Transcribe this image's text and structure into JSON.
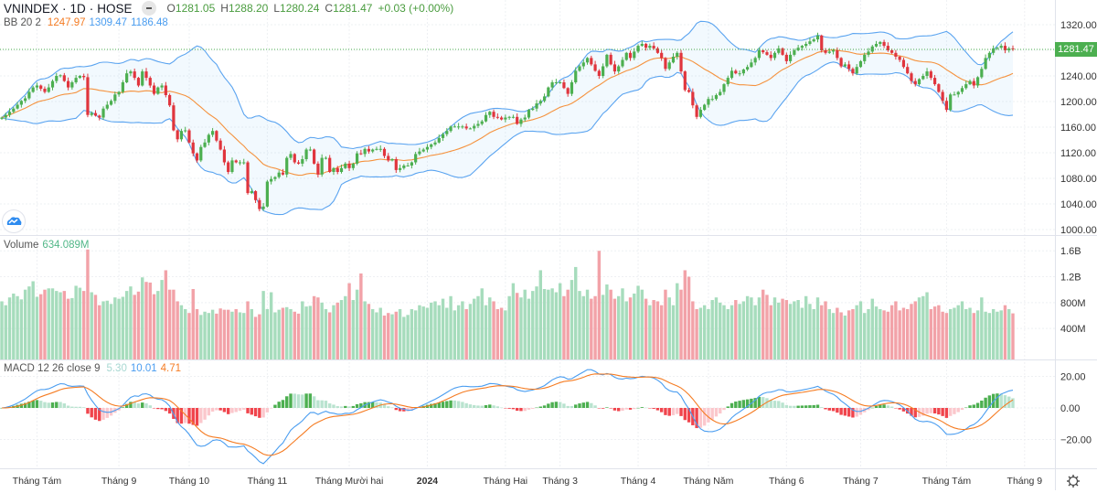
{
  "header": {
    "symbol": "VNINDEX",
    "interval": "1D",
    "exchange": "HOSE",
    "separator": "·",
    "o_label": "O",
    "o": "1281.05",
    "h_label": "H",
    "h": "1288.20",
    "l_label": "L",
    "l": "1280.24",
    "c_label": "C",
    "c": "1281.47",
    "change": "+0.03 (+0.00%)"
  },
  "bb": {
    "label": "BB 20 2",
    "basis": "1247.97",
    "upper": "1309.47",
    "lower": "1186.48"
  },
  "volume": {
    "label": "Volume",
    "value": "634.089M"
  },
  "macd": {
    "label": "MACD 12 26 close 9",
    "hist": "5.30",
    "macd": "10.01",
    "signal": "4.71"
  },
  "last_price": "1281.47",
  "colors": {
    "up": "#4caf50",
    "down": "#e0353d",
    "vol_up": "#a6dcbc",
    "vol_down": "#f2a2a8",
    "bb_band": "#5ba4f0",
    "bb_basis": "#f5923e",
    "macd_line": "#4a9df0",
    "signal_line": "#f57c23",
    "hist_up_strong": "#4caf50",
    "hist_up_weak": "#b9e3cf",
    "hist_down_strong": "#f0444c",
    "hist_down_weak": "#fbc7cc",
    "last_price": "#4caf50"
  },
  "icons": {
    "logo": "cloud-chart-logo-icon",
    "settings": "gear-icon",
    "legend_toggle": "minus-icon"
  },
  "chart_data": {
    "type": "candlestick",
    "ylim": [
      1000,
      1320
    ],
    "price_ticks": [
      {
        "label": "1320.00",
        "value": 1320
      },
      {
        "label": "1280.00",
        "value": 1280
      },
      {
        "label": "1240.00",
        "value": 1240
      },
      {
        "label": "1200.00",
        "value": 1200
      },
      {
        "label": "1160.00",
        "value": 1160
      },
      {
        "label": "1120.00",
        "value": 1120
      },
      {
        "label": "1080.00",
        "value": 1080
      },
      {
        "label": "1040.00",
        "value": 1040
      },
      {
        "label": "1000.00",
        "value": 1000
      }
    ],
    "volume_ticks": [
      {
        "label": "1.6B",
        "value": 1600
      },
      {
        "label": "1.2B",
        "value": 1200
      },
      {
        "label": "800M",
        "value": 800
      },
      {
        "label": "400M",
        "value": 400
      }
    ],
    "macd_ticks": [
      {
        "label": "20.00",
        "value": 20
      },
      {
        "label": "0.00",
        "value": 0
      },
      {
        "label": "−20.00",
        "value": -20
      }
    ],
    "months": [
      {
        "label": "Tháng Tám",
        "index": 9
      },
      {
        "label": "Tháng 9",
        "index": 30
      },
      {
        "label": "Tháng 10",
        "index": 48
      },
      {
        "label": "Tháng 11",
        "index": 68
      },
      {
        "label": "Tháng Mười hai",
        "index": 89
      },
      {
        "label": "2024",
        "index": 109,
        "bold": true
      },
      {
        "label": "Tháng Hai",
        "index": 129
      },
      {
        "label": "Tháng 3",
        "index": 143
      },
      {
        "label": "Tháng 4",
        "index": 163
      },
      {
        "label": "Tháng Năm",
        "index": 181
      },
      {
        "label": "Tháng 6",
        "index": 201
      },
      {
        "label": "Tháng 7",
        "index": 220
      },
      {
        "label": "Tháng Tám",
        "index": 242
      },
      {
        "label": "Tháng 9",
        "index": 262
      }
    ],
    "close": [
      1175,
      1179,
      1184,
      1189,
      1195,
      1201,
      1205,
      1215,
      1222,
      1225,
      1220,
      1215,
      1222,
      1232,
      1240,
      1241,
      1232,
      1222,
      1230,
      1237,
      1240,
      1238,
      1179,
      1182,
      1178,
      1175,
      1189,
      1195,
      1201,
      1211,
      1215,
      1230,
      1244,
      1247,
      1237,
      1225,
      1247,
      1237,
      1225,
      1212,
      1222,
      1225,
      1210,
      1194,
      1155,
      1141,
      1154,
      1155,
      1136,
      1119,
      1108,
      1129,
      1136,
      1148,
      1154,
      1139,
      1125,
      1105,
      1090,
      1108,
      1105,
      1105,
      1105,
      1057,
      1060,
      1046,
      1032,
      1036,
      1075,
      1079,
      1082,
      1089,
      1086,
      1112,
      1118,
      1105,
      1103,
      1110,
      1125,
      1125,
      1103,
      1086,
      1112,
      1112,
      1090,
      1096,
      1090,
      1096,
      1103,
      1096,
      1103,
      1119,
      1118,
      1126,
      1122,
      1125,
      1126,
      1126,
      1115,
      1108,
      1110,
      1093,
      1096,
      1100,
      1100,
      1105,
      1118,
      1122,
      1125,
      1129,
      1133,
      1136,
      1143,
      1149,
      1154,
      1161,
      1161,
      1161,
      1161,
      1158,
      1158,
      1162,
      1165,
      1169,
      1179,
      1184,
      1176,
      1175,
      1172,
      1175,
      1176,
      1176,
      1165,
      1172,
      1175,
      1187,
      1189,
      1197,
      1201,
      1208,
      1222,
      1230,
      1230,
      1230,
      1221,
      1212,
      1230,
      1248,
      1255,
      1261,
      1268,
      1258,
      1248,
      1240,
      1255,
      1273,
      1258,
      1247,
      1255,
      1265,
      1276,
      1268,
      1278,
      1287,
      1290,
      1284,
      1287,
      1283,
      1276,
      1268,
      1251,
      1261,
      1270,
      1276,
      1247,
      1218,
      1215,
      1194,
      1176,
      1187,
      1195,
      1204,
      1204,
      1210,
      1215,
      1227,
      1237,
      1248,
      1244,
      1244,
      1250,
      1254,
      1261,
      1268,
      1280,
      1277,
      1273,
      1268,
      1276,
      1283,
      1273,
      1263,
      1273,
      1280,
      1284,
      1287,
      1290,
      1294,
      1297,
      1303,
      1280,
      1276,
      1278,
      1280,
      1268,
      1255,
      1258,
      1251,
      1244,
      1254,
      1263,
      1273,
      1278,
      1286,
      1290,
      1293,
      1287,
      1280,
      1276,
      1270,
      1265,
      1254,
      1244,
      1232,
      1227,
      1235,
      1240,
      1247,
      1237,
      1227,
      1215,
      1201,
      1187,
      1211,
      1211,
      1215,
      1221,
      1227,
      1232,
      1225,
      1238,
      1251,
      1268,
      1276,
      1283,
      1284,
      1287,
      1280,
      1283,
      1281.47
    ],
    "volume_millions": [
      820,
      760,
      880,
      940,
      900,
      850,
      1000,
      1050,
      1130,
      890,
      930,
      1000,
      1020,
      1020,
      980,
      960,
      980,
      860,
      870,
      1060,
      1030,
      980,
      1620,
      960,
      920,
      760,
      820,
      830,
      780,
      880,
      860,
      890,
      980,
      1050,
      920,
      970,
      1190,
      1120,
      1110,
      930,
      980,
      1150,
      1300,
      1000,
      1000,
      820,
      760,
      700,
      640,
      1010,
      700,
      610,
      660,
      640,
      690,
      630,
      710,
      690,
      690,
      660,
      700,
      650,
      640,
      820,
      700,
      580,
      620,
      980,
      700,
      960,
      650,
      690,
      720,
      730,
      700,
      660,
      630,
      820,
      740,
      750,
      900,
      880,
      800,
      700,
      650,
      760,
      800,
      840,
      900,
      1100,
      840,
      1000,
      1250,
      820,
      780,
      700,
      650,
      720,
      600,
      640,
      620,
      660,
      700,
      580,
      610,
      700,
      680,
      760,
      740,
      720,
      800,
      820,
      760,
      860,
      720,
      900,
      680,
      760,
      820,
      700,
      780,
      860,
      900,
      1020,
      760,
      880,
      820,
      700,
      720,
      680,
      900,
      1100,
      950,
      880,
      1000,
      860,
      980,
      1050,
      1300,
      1010,
      1000,
      1020,
      960,
      1100,
      900,
      1000,
      1150,
      1350,
      980,
      900,
      1000,
      860,
      900,
      1600,
      920,
      1080,
      1000,
      860,
      900,
      1020,
      820,
      880,
      940,
      1060,
      1000,
      860,
      760,
      840,
      820,
      760,
      1000,
      880,
      760,
      1100,
      1000,
      1300,
      1200,
      820,
      700,
      720,
      760,
      700,
      840,
      880,
      800,
      760,
      700,
      760,
      840,
      780,
      820,
      900,
      880,
      760,
      880,
      1000,
      920,
      760,
      880,
      800,
      860,
      840,
      780,
      820,
      840,
      720,
      900,
      780,
      700,
      880,
      760,
      820,
      700,
      640,
      720,
      650,
      600,
      680,
      700,
      760,
      820,
      640,
      700,
      860,
      740,
      700,
      680,
      660,
      760,
      820,
      680,
      720,
      700,
      780,
      820,
      880,
      900,
      960,
      700,
      740,
      760,
      660,
      640,
      700,
      720,
      760,
      820,
      700,
      720,
      640,
      680,
      880,
      660,
      640,
      700,
      660,
      680,
      760,
      700,
      634.089
    ]
  }
}
